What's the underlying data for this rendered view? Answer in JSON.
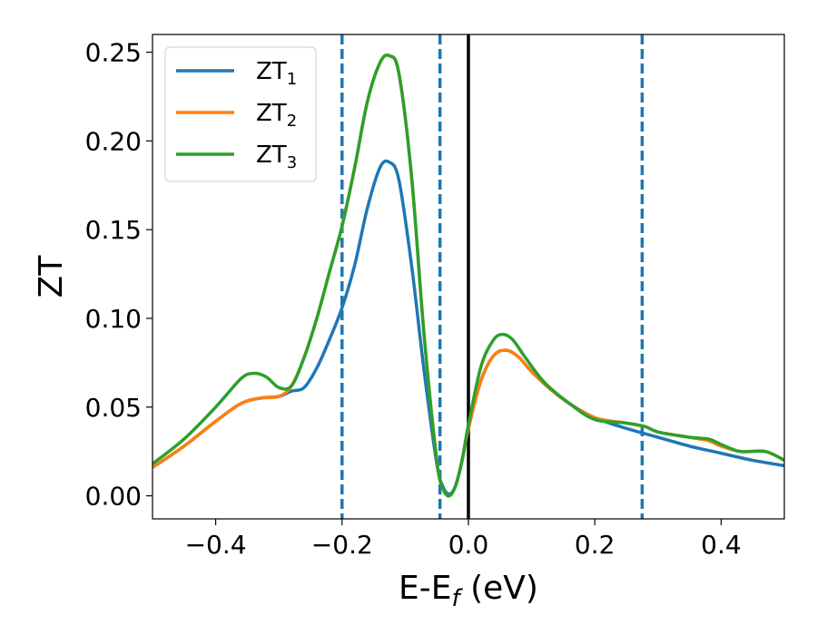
{
  "chart_data": {
    "type": "line",
    "title": "",
    "xlabel": "E-E_f (eV)",
    "ylabel": "ZT",
    "xlim": [
      -0.5,
      0.5
    ],
    "ylim": [
      -0.013,
      0.26
    ],
    "grid": false,
    "legend_placement": "top-left",
    "x_ticks": [
      -0.4,
      -0.2,
      0.0,
      0.2,
      0.4
    ],
    "x_tick_labels": [
      "−0.4",
      "−0.2",
      "0.0",
      "0.2",
      "0.4"
    ],
    "y_ticks": [
      0.0,
      0.05,
      0.1,
      0.15,
      0.2,
      0.25
    ],
    "y_tick_labels": [
      "0.00",
      "0.05",
      "0.10",
      "0.15",
      "0.20",
      "0.25"
    ],
    "vertical_lines": [
      {
        "x": -0.2,
        "style": "dashed",
        "color": "#1f77b4"
      },
      {
        "x": -0.045,
        "style": "dashed",
        "color": "#1f77b4"
      },
      {
        "x": 0.0,
        "style": "solid",
        "color": "#000000"
      },
      {
        "x": 0.275,
        "style": "dashed",
        "color": "#1f77b4"
      }
    ],
    "series": [
      {
        "name": "ZT",
        "subscript": "1",
        "color": "#1f77b4",
        "x": [
          -0.5,
          -0.45,
          -0.4,
          -0.36,
          -0.33,
          -0.3,
          -0.28,
          -0.26,
          -0.24,
          -0.22,
          -0.2,
          -0.18,
          -0.16,
          -0.14,
          -0.125,
          -0.11,
          -0.09,
          -0.07,
          -0.05,
          -0.04,
          -0.03,
          -0.02,
          -0.01,
          0.0,
          0.02,
          0.04,
          0.06,
          0.08,
          0.1,
          0.13,
          0.16,
          0.2,
          0.25,
          0.3,
          0.35,
          0.4,
          0.45,
          0.5
        ],
        "y": [
          0.016,
          0.028,
          0.042,
          0.052,
          0.055,
          0.056,
          0.059,
          0.061,
          0.072,
          0.088,
          0.106,
          0.13,
          0.162,
          0.185,
          0.188,
          0.178,
          0.13,
          0.07,
          0.018,
          0.005,
          0.001,
          0.006,
          0.02,
          0.038,
          0.065,
          0.079,
          0.082,
          0.078,
          0.07,
          0.06,
          0.052,
          0.044,
          0.038,
          0.033,
          0.028,
          0.024,
          0.02,
          0.017
        ]
      },
      {
        "name": "ZT",
        "subscript": "2",
        "color": "#ff7f0e",
        "x": [
          -0.5,
          -0.45,
          -0.4,
          -0.36,
          -0.33,
          -0.3,
          -0.28,
          -0.26,
          -0.24,
          -0.22,
          -0.2,
          -0.18,
          -0.16,
          -0.14,
          -0.125,
          -0.11,
          -0.09,
          -0.07,
          -0.05,
          -0.04,
          -0.03,
          -0.02,
          -0.01,
          0.0,
          0.02,
          0.04,
          0.06,
          0.08,
          0.1,
          0.13,
          0.16,
          0.2,
          0.25,
          0.28,
          0.3,
          0.35,
          0.38,
          0.4,
          0.43,
          0.47,
          0.5
        ],
        "y": [
          0.016,
          0.028,
          0.042,
          0.052,
          0.055,
          0.056,
          0.062,
          0.078,
          0.1,
          0.126,
          0.152,
          0.185,
          0.222,
          0.244,
          0.248,
          0.238,
          0.18,
          0.09,
          0.02,
          0.004,
          0.0,
          0.006,
          0.02,
          0.038,
          0.065,
          0.079,
          0.082,
          0.078,
          0.07,
          0.06,
          0.052,
          0.044,
          0.041,
          0.039,
          0.036,
          0.033,
          0.031,
          0.028,
          0.025,
          0.025,
          0.02
        ]
      },
      {
        "name": "ZT",
        "subscript": "3",
        "color": "#2ca02c",
        "x": [
          -0.5,
          -0.45,
          -0.4,
          -0.36,
          -0.34,
          -0.32,
          -0.3,
          -0.28,
          -0.26,
          -0.24,
          -0.22,
          -0.2,
          -0.18,
          -0.16,
          -0.14,
          -0.125,
          -0.11,
          -0.09,
          -0.07,
          -0.05,
          -0.04,
          -0.03,
          -0.02,
          -0.01,
          0.0,
          0.02,
          0.04,
          0.055,
          0.07,
          0.09,
          0.12,
          0.16,
          0.2,
          0.25,
          0.28,
          0.3,
          0.35,
          0.38,
          0.4,
          0.43,
          0.47,
          0.5
        ],
        "y": [
          0.018,
          0.032,
          0.05,
          0.066,
          0.069,
          0.067,
          0.061,
          0.062,
          0.078,
          0.1,
          0.126,
          0.152,
          0.185,
          0.222,
          0.244,
          0.248,
          0.238,
          0.18,
          0.09,
          0.02,
          0.004,
          0.0,
          0.006,
          0.02,
          0.04,
          0.073,
          0.088,
          0.091,
          0.088,
          0.078,
          0.064,
          0.052,
          0.043,
          0.041,
          0.039,
          0.036,
          0.033,
          0.032,
          0.029,
          0.025,
          0.025,
          0.02
        ]
      }
    ]
  }
}
